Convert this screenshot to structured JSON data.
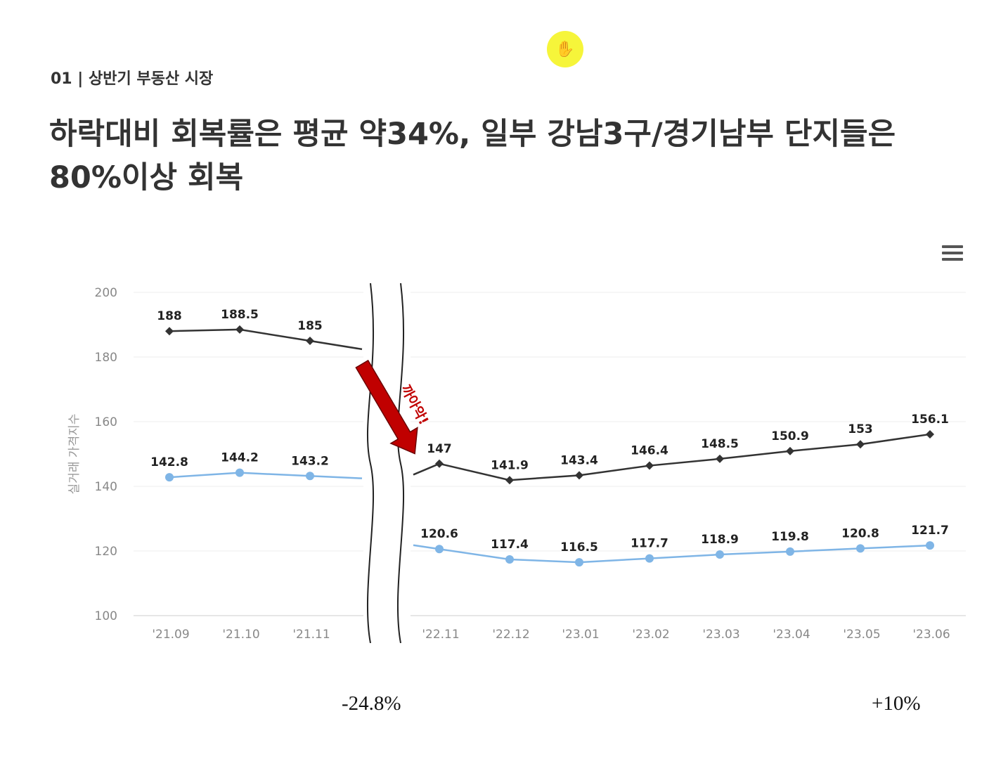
{
  "header": {
    "section_label": "01 | 상반기 부동산 시장",
    "headline": "하락대비 회복률은 평균 약34%, 일부 강남3구/경기남부 단지들은 80%이상 회복"
  },
  "icons": {
    "menu": "hamburger-menu-icon",
    "cursor": "hand-cursor-icon"
  },
  "chart_data": {
    "type": "line",
    "ylabel": "실거래 가격지수",
    "ylim": [
      100,
      200
    ],
    "yticks": [
      100,
      120,
      140,
      160,
      180,
      200
    ],
    "categories": [
      "'21.09",
      "'21.10",
      "'21.11",
      "'22.11",
      "'22.12",
      "'23.01",
      "'23.02",
      "'23.03",
      "'23.04",
      "'23.05",
      "'23.06"
    ],
    "axis_break_after": "'21.11",
    "series": [
      {
        "color": "#333333",
        "marker": "diamond",
        "values": [
          188,
          188.5,
          185,
          147,
          141.9,
          143.4,
          146.4,
          148.5,
          150.9,
          153,
          156.1
        ]
      },
      {
        "color": "#7fb5e6",
        "marker": "circle",
        "values": [
          142.8,
          144.2,
          143.2,
          120.6,
          117.4,
          116.5,
          117.7,
          118.9,
          119.8,
          120.8,
          121.7
        ]
      }
    ],
    "annotations": {
      "drop_label": "까아악!",
      "drop_arrow_color": "#c00000",
      "decline_pct": "-24.8%",
      "recovery_pct": "+10%"
    },
    "grid": true
  }
}
